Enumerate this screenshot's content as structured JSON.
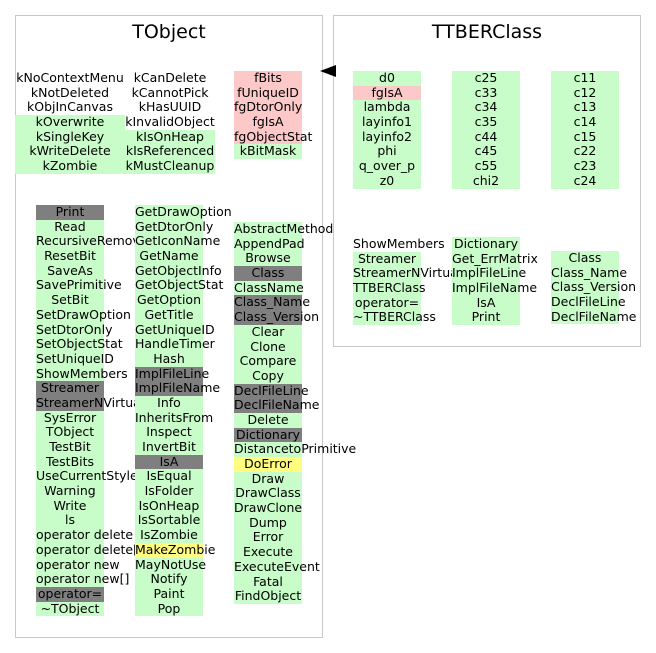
{
  "colors": {
    "public": "#c8fcc8",
    "inherited": "#fcc8c8",
    "highlight": "#fffc80",
    "protected": "#7f7f7f"
  },
  "tobject": {
    "title": "TObject",
    "columns": [
      {
        "items": [
          {
            "text": "kNoContextMenu",
            "style": "none"
          },
          {
            "text": "kNotDeleted",
            "style": "none"
          },
          {
            "text": "kObjInCanvas",
            "style": "none"
          },
          {
            "text": "kOverwrite",
            "style": "public"
          },
          {
            "text": "kSingleKey",
            "style": "public"
          },
          {
            "text": "kWriteDelete",
            "style": "public"
          },
          {
            "text": "kZombie",
            "style": "public"
          }
        ]
      },
      {
        "items": [
          {
            "text": "kCanDelete",
            "style": "none"
          },
          {
            "text": "kCannotPick",
            "style": "none"
          },
          {
            "text": "kHasUUID",
            "style": "none"
          },
          {
            "text": "kInvalidObject",
            "style": "none"
          },
          {
            "text": "kIsOnHeap",
            "style": "public"
          },
          {
            "text": "kIsReferenced",
            "style": "public"
          },
          {
            "text": "kMustCleanup",
            "style": "public"
          }
        ]
      },
      {
        "items": [
          {
            "text": "fBits",
            "style": "inherited"
          },
          {
            "text": "fUniqueID",
            "style": "inherited"
          },
          {
            "text": "fgDtorOnly",
            "style": "inherited"
          },
          {
            "text": "fgIsA",
            "style": "inherited"
          },
          {
            "text": "fgObjectStat",
            "style": "inherited"
          },
          {
            "text": "kBitMask",
            "style": "public"
          }
        ]
      },
      {
        "items": [
          {
            "text": "Print",
            "style": "protected"
          },
          {
            "text": "Read",
            "style": "public"
          },
          {
            "text": "RecursiveRemove",
            "style": "public"
          },
          {
            "text": "ResetBit",
            "style": "public"
          },
          {
            "text": "SaveAs",
            "style": "public"
          },
          {
            "text": "SavePrimitive",
            "style": "public"
          },
          {
            "text": "SetBit",
            "style": "public"
          },
          {
            "text": "SetDrawOption",
            "style": "public"
          },
          {
            "text": "SetDtorOnly",
            "style": "public"
          },
          {
            "text": "SetObjectStat",
            "style": "public"
          },
          {
            "text": "SetUniqueID",
            "style": "public"
          },
          {
            "text": "ShowMembers",
            "style": "public"
          },
          {
            "text": "Streamer",
            "style": "protected"
          },
          {
            "text": "StreamerNVirtual",
            "style": "protected"
          },
          {
            "text": "SysError",
            "style": "public"
          },
          {
            "text": "TObject",
            "style": "public"
          },
          {
            "text": "TestBit",
            "style": "public"
          },
          {
            "text": "TestBits",
            "style": "public"
          },
          {
            "text": "UseCurrentStyle",
            "style": "public"
          },
          {
            "text": "Warning",
            "style": "public"
          },
          {
            "text": "Write",
            "style": "public"
          },
          {
            "text": "ls",
            "style": "public"
          },
          {
            "text": "operator delete",
            "style": "public"
          },
          {
            "text": "operator delete[]",
            "style": "public"
          },
          {
            "text": "operator new",
            "style": "public"
          },
          {
            "text": "operator new[]",
            "style": "public"
          },
          {
            "text": "operator=",
            "style": "protected"
          },
          {
            "text": "~TObject",
            "style": "public"
          }
        ]
      },
      {
        "items": [
          {
            "text": "GetDrawOption",
            "style": "public"
          },
          {
            "text": "GetDtorOnly",
            "style": "public"
          },
          {
            "text": "GetIconName",
            "style": "public"
          },
          {
            "text": "GetName",
            "style": "public"
          },
          {
            "text": "GetObjectInfo",
            "style": "public"
          },
          {
            "text": "GetObjectStat",
            "style": "public"
          },
          {
            "text": "GetOption",
            "style": "public"
          },
          {
            "text": "GetTitle",
            "style": "public"
          },
          {
            "text": "GetUniqueID",
            "style": "public"
          },
          {
            "text": "HandleTimer",
            "style": "public"
          },
          {
            "text": "Hash",
            "style": "public"
          },
          {
            "text": "ImplFileLine",
            "style": "protected"
          },
          {
            "text": "ImplFileName",
            "style": "protected"
          },
          {
            "text": "Info",
            "style": "public"
          },
          {
            "text": "InheritsFrom",
            "style": "public"
          },
          {
            "text": "Inspect",
            "style": "public"
          },
          {
            "text": "InvertBit",
            "style": "public"
          },
          {
            "text": "IsA",
            "style": "protected"
          },
          {
            "text": "IsEqual",
            "style": "public"
          },
          {
            "text": "IsFolder",
            "style": "public"
          },
          {
            "text": "IsOnHeap",
            "style": "public"
          },
          {
            "text": "IsSortable",
            "style": "public"
          },
          {
            "text": "IsZombie",
            "style": "public"
          },
          {
            "text": "MakeZombie",
            "style": "highlight"
          },
          {
            "text": "MayNotUse",
            "style": "public"
          },
          {
            "text": "Notify",
            "style": "public"
          },
          {
            "text": "Paint",
            "style": "public"
          },
          {
            "text": "Pop",
            "style": "public"
          }
        ]
      },
      {
        "items": [
          {
            "text": "AbstractMethod",
            "style": "public"
          },
          {
            "text": "AppendPad",
            "style": "public"
          },
          {
            "text": "Browse",
            "style": "public"
          },
          {
            "text": "Class",
            "style": "protected"
          },
          {
            "text": "ClassName",
            "style": "public"
          },
          {
            "text": "Class_Name",
            "style": "protected"
          },
          {
            "text": "Class_Version",
            "style": "protected"
          },
          {
            "text": "Clear",
            "style": "public"
          },
          {
            "text": "Clone",
            "style": "public"
          },
          {
            "text": "Compare",
            "style": "public"
          },
          {
            "text": "Copy",
            "style": "public"
          },
          {
            "text": "DeclFileLine",
            "style": "protected"
          },
          {
            "text": "DeclFileName",
            "style": "protected"
          },
          {
            "text": "Delete",
            "style": "public"
          },
          {
            "text": "Dictionary",
            "style": "protected"
          },
          {
            "text": "DistancetoPrimitive",
            "style": "public"
          },
          {
            "text": "DoError",
            "style": "highlight"
          },
          {
            "text": "Draw",
            "style": "public"
          },
          {
            "text": "DrawClass",
            "style": "public"
          },
          {
            "text": "DrawClone",
            "style": "public"
          },
          {
            "text": "Dump",
            "style": "public"
          },
          {
            "text": "Error",
            "style": "public"
          },
          {
            "text": "Execute",
            "style": "public"
          },
          {
            "text": "ExecuteEvent",
            "style": "public"
          },
          {
            "text": "Fatal",
            "style": "public"
          },
          {
            "text": "FindObject",
            "style": "public"
          }
        ]
      }
    ]
  },
  "ttberclass": {
    "title": "TTBERClass",
    "columns": [
      {
        "items": [
          {
            "text": "d0",
            "style": "public"
          },
          {
            "text": "fgIsA",
            "style": "inherited"
          },
          {
            "text": "lambda",
            "style": "public"
          },
          {
            "text": "layinfo1",
            "style": "public"
          },
          {
            "text": "layinfo2",
            "style": "public"
          },
          {
            "text": "phi",
            "style": "public"
          },
          {
            "text": "q_over_p",
            "style": "public"
          },
          {
            "text": "z0",
            "style": "public"
          }
        ]
      },
      {
        "items": [
          {
            "text": "c25",
            "style": "public"
          },
          {
            "text": "c33",
            "style": "public"
          },
          {
            "text": "c34",
            "style": "public"
          },
          {
            "text": "c35",
            "style": "public"
          },
          {
            "text": "c44",
            "style": "public"
          },
          {
            "text": "c45",
            "style": "public"
          },
          {
            "text": "c55",
            "style": "public"
          },
          {
            "text": "chi2",
            "style": "public"
          }
        ]
      },
      {
        "items": [
          {
            "text": "c11",
            "style": "public"
          },
          {
            "text": "c12",
            "style": "public"
          },
          {
            "text": "c13",
            "style": "public"
          },
          {
            "text": "c14",
            "style": "public"
          },
          {
            "text": "c15",
            "style": "public"
          },
          {
            "text": "c22",
            "style": "public"
          },
          {
            "text": "c23",
            "style": "public"
          },
          {
            "text": "c24",
            "style": "public"
          }
        ]
      },
      {
        "items": [
          {
            "text": "ShowMembers",
            "style": "none"
          },
          {
            "text": "Streamer",
            "style": "public"
          },
          {
            "text": "StreamerNVirtual",
            "style": "public"
          },
          {
            "text": "TTBERClass",
            "style": "public"
          },
          {
            "text": "operator=",
            "style": "public"
          },
          {
            "text": "~TTBERClass",
            "style": "public"
          }
        ]
      },
      {
        "items": [
          {
            "text": "Dictionary",
            "style": "public"
          },
          {
            "text": "Get_ErrMatrix",
            "style": "public"
          },
          {
            "text": "ImplFileLine",
            "style": "public"
          },
          {
            "text": "ImplFileName",
            "style": "public"
          },
          {
            "text": "IsA",
            "style": "public"
          },
          {
            "text": "Print",
            "style": "public"
          }
        ]
      },
      {
        "items": [
          {
            "text": "Class",
            "style": "public"
          },
          {
            "text": "Class_Name",
            "style": "public"
          },
          {
            "text": "Class_Version",
            "style": "public"
          },
          {
            "text": "DeclFileLine",
            "style": "public"
          },
          {
            "text": "DeclFileName",
            "style": "public"
          }
        ]
      }
    ]
  }
}
